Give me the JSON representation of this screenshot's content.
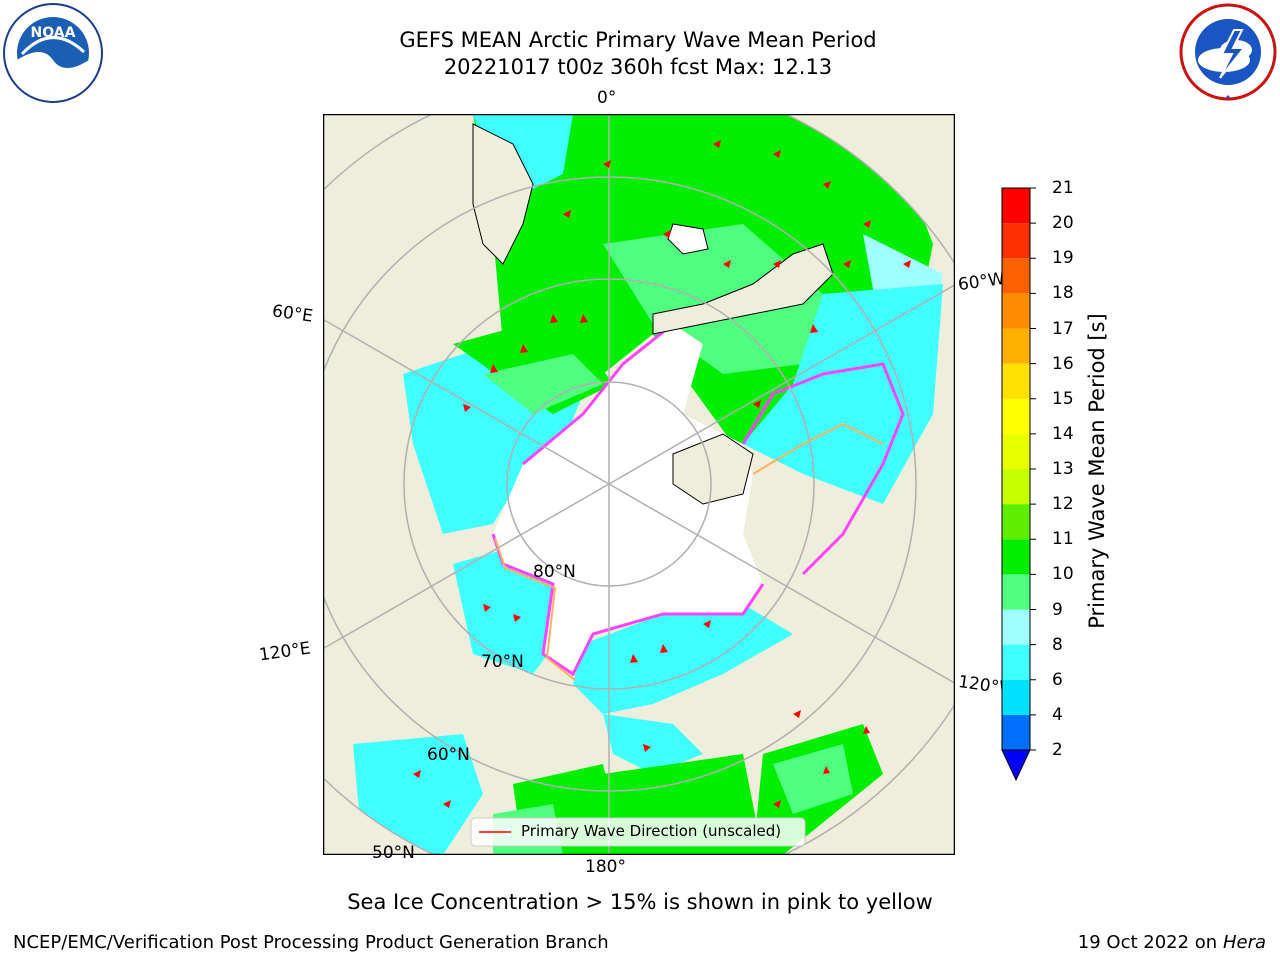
{
  "header": {
    "title_line1": "GEFS MEAN Arctic Primary Wave Mean Period",
    "title_line2": "20221017 t00z 360h fcst   Max: 12.13"
  },
  "logos": {
    "left": {
      "name": "NOAA",
      "text": "NOAA",
      "ring_text": "NATIONAL OCEANIC AND ATMOSPHERIC ADMINISTRATION · U.S. DEPARTMENT OF COMMERCE"
    },
    "right": {
      "name": "National Weather Service",
      "ring_text": "NATIONAL WEATHER SERVICE"
    }
  },
  "map": {
    "longitude_labels": {
      "top": "0°",
      "left_upper": "60°E",
      "right_upper": "60°W",
      "left_lower": "120°E",
      "right_lower": "120°W",
      "bottom": "180°"
    },
    "latitude_labels": [
      "80°N",
      "70°N",
      "60°N",
      "50°N"
    ],
    "legend_label": "Primary Wave Direction (unscaled)",
    "colors": {
      "land": "#efeddc",
      "open_water_ice": "#ffffff",
      "ice_edge_pink": "#ff44ff",
      "ice_edge_orange": "#ffb060",
      "arrow": "#ff0000"
    }
  },
  "colorbar": {
    "label": "Primary Wave Mean Period [s]",
    "tick_labels": [
      "2",
      "4",
      "6",
      "8",
      "9",
      "10",
      "11",
      "12",
      "13",
      "14",
      "15",
      "16",
      "17",
      "18",
      "19",
      "20",
      "21"
    ],
    "bins": [
      {
        "from": 2,
        "to": 4,
        "color": "#0070ff"
      },
      {
        "from": 4,
        "to": 6,
        "color": "#00e0ff"
      },
      {
        "from": 6,
        "to": 8,
        "color": "#40ffff"
      },
      {
        "from": 8,
        "to": 9,
        "color": "#a0ffff"
      },
      {
        "from": 9,
        "to": 10,
        "color": "#50ff80"
      },
      {
        "from": 10,
        "to": 11,
        "color": "#00ee00"
      },
      {
        "from": 11,
        "to": 12,
        "color": "#60ee00"
      },
      {
        "from": 12,
        "to": 13,
        "color": "#c8ff00"
      },
      {
        "from": 13,
        "to": 14,
        "color": "#e8ff00"
      },
      {
        "from": 14,
        "to": 15,
        "color": "#ffff00"
      },
      {
        "from": 15,
        "to": 16,
        "color": "#ffe000"
      },
      {
        "from": 16,
        "to": 17,
        "color": "#ffb000"
      },
      {
        "from": 17,
        "to": 18,
        "color": "#ff8c00"
      },
      {
        "from": 18,
        "to": 19,
        "color": "#ff6000"
      },
      {
        "from": 19,
        "to": 20,
        "color": "#ff3000"
      },
      {
        "from": 20,
        "to": 21,
        "color": "#ff0000"
      }
    ],
    "under_color": "#0000ff"
  },
  "notes": {
    "sea_ice": "Sea Ice Concentration > 15% is shown in pink to yellow"
  },
  "footer": {
    "left": "NCEP/EMC/Verification Post Processing Product Generation Branch",
    "right_date": "19 Oct 2022 on ",
    "right_machine": "Hera"
  }
}
